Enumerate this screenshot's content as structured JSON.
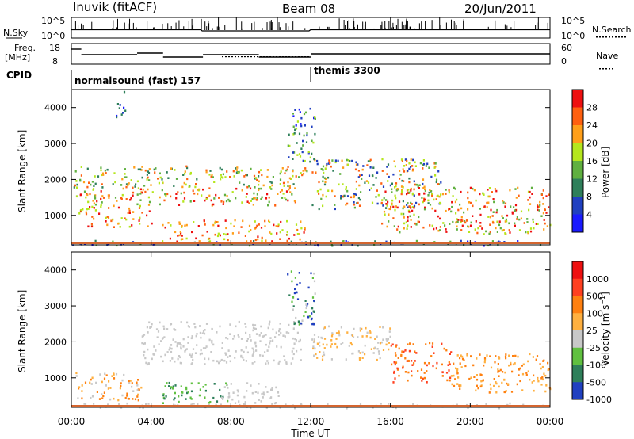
{
  "header": {
    "station": "Inuvik (fitACF)",
    "beam": "Beam 08",
    "date": "20/Jun/2011"
  },
  "noise_panel": {
    "left_label": "N.Sky",
    "right_label": "N.Search",
    "left_ticks": [
      "10^5",
      "10^0"
    ],
    "right_ticks": [
      "10^5",
      "10^0"
    ]
  },
  "freq_panel": {
    "left_label_1": "Freq.",
    "left_label_2": "[MHz]",
    "right_label": "Nave",
    "left_ticks": [
      "18",
      "8"
    ],
    "right_ticks": [
      "60",
      "0"
    ]
  },
  "cpid_panel": {
    "label": "CPID",
    "modes": [
      {
        "name": "normalsound (fast) 157",
        "start_hour": 0
      },
      {
        "name": "themis 3300",
        "start_hour": 12
      }
    ]
  },
  "colors": {
    "power": [
      "#1a1aff",
      "#2040c0",
      "#2e7f5a",
      "#60b040",
      "#b5e61d",
      "#ff9f1a",
      "#ff6010",
      "#ee1010"
    ],
    "velocity": [
      "#2040c0",
      "#2e7f5a",
      "#60c040",
      "#c8c8c8",
      "#ffb040",
      "#ff8010",
      "#ff4020",
      "#ee1010"
    ],
    "ground_line": "#d4652f"
  },
  "chart_data": [
    {
      "type": "heatmap",
      "name": "power",
      "ylabel": "Slant Range [km]",
      "colorbar_label": "Power [dB]",
      "colorbar_ticks": [
        "28",
        "24",
        "20",
        "16",
        "12",
        "8",
        "4"
      ],
      "ylim": [
        180,
        4500
      ],
      "yticks": [
        "4000",
        "3000",
        "2000",
        "1000"
      ],
      "ytick_values": [
        4000,
        3000,
        2000,
        1000
      ],
      "xlim": [
        0,
        24
      ],
      "scatter_regions": [
        {
          "t": [
            0.1,
            11.8
          ],
          "r": [
            1800,
            2400
          ],
          "level": [
            2,
            6
          ]
        },
        {
          "t": [
            0.2,
            11.5
          ],
          "r": [
            1300,
            1800
          ],
          "level": [
            3,
            7
          ]
        },
        {
          "t": [
            0.3,
            4.0
          ],
          "r": [
            700,
            1300
          ],
          "level": [
            4,
            7
          ]
        },
        {
          "t": [
            4.5,
            11.7
          ],
          "r": [
            300,
            900
          ],
          "level": [
            4,
            7
          ]
        },
        {
          "t": [
            0.0,
            24.0
          ],
          "r": [
            180,
            320
          ],
          "level": [
            0,
            3
          ]
        },
        {
          "t": [
            12.0,
            18.5
          ],
          "r": [
            1200,
            2600
          ],
          "level": [
            1,
            6
          ]
        },
        {
          "t": [
            15.5,
            24.0
          ],
          "r": [
            500,
            1800
          ],
          "level": [
            3,
            7
          ]
        },
        {
          "t": [
            10.8,
            12.2
          ],
          "r": [
            2500,
            4000
          ],
          "level": [
            0,
            4
          ]
        },
        {
          "t": [
            2.2,
            2.7
          ],
          "r": [
            3700,
            4500
          ],
          "level": [
            0,
            2
          ]
        }
      ]
    },
    {
      "type": "heatmap",
      "name": "velocity",
      "ylabel": "Slant Range [km]",
      "xlabel": "Time UT",
      "colorbar_label": "Velocity [m s^-1]",
      "colorbar_ticks": [
        "1000",
        "500",
        "100",
        "25",
        "-25",
        "-100",
        "-500",
        "-1000"
      ],
      "ylim": [
        180,
        4500
      ],
      "yticks": [
        "4000",
        "3000",
        "2000",
        "1000"
      ],
      "ytick_values": [
        4000,
        3000,
        2000,
        1000
      ],
      "xlim": [
        0,
        24
      ],
      "xticks": [
        "00:00",
        "04:00",
        "08:00",
        "12:00",
        "16:00",
        "20:00",
        "00:00"
      ],
      "scatter_regions": [
        {
          "t": [
            3.5,
            11.5
          ],
          "r": [
            1400,
            2600
          ],
          "level": [
            3,
            3
          ]
        },
        {
          "t": [
            0.2,
            3.5
          ],
          "r": [
            400,
            1200
          ],
          "level": [
            3,
            5
          ]
        },
        {
          "t": [
            4.5,
            7.8
          ],
          "r": [
            300,
            900
          ],
          "level": [
            1,
            2
          ]
        },
        {
          "t": [
            7.5,
            10.5
          ],
          "r": [
            300,
            900
          ],
          "level": [
            3,
            3
          ]
        },
        {
          "t": [
            12.0,
            16.0
          ],
          "r": [
            1500,
            2500
          ],
          "level": [
            3,
            4
          ]
        },
        {
          "t": [
            16.0,
            19.0
          ],
          "r": [
            900,
            2000
          ],
          "level": [
            5,
            6
          ]
        },
        {
          "t": [
            19.0,
            24.0
          ],
          "r": [
            600,
            1700
          ],
          "level": [
            4,
            5
          ]
        },
        {
          "t": [
            10.8,
            12.2
          ],
          "r": [
            2500,
            4000
          ],
          "level": [
            0,
            3
          ]
        },
        {
          "t": [
            0.0,
            24.0
          ],
          "r": [
            180,
            320
          ],
          "level": [
            3,
            3
          ]
        }
      ]
    }
  ]
}
